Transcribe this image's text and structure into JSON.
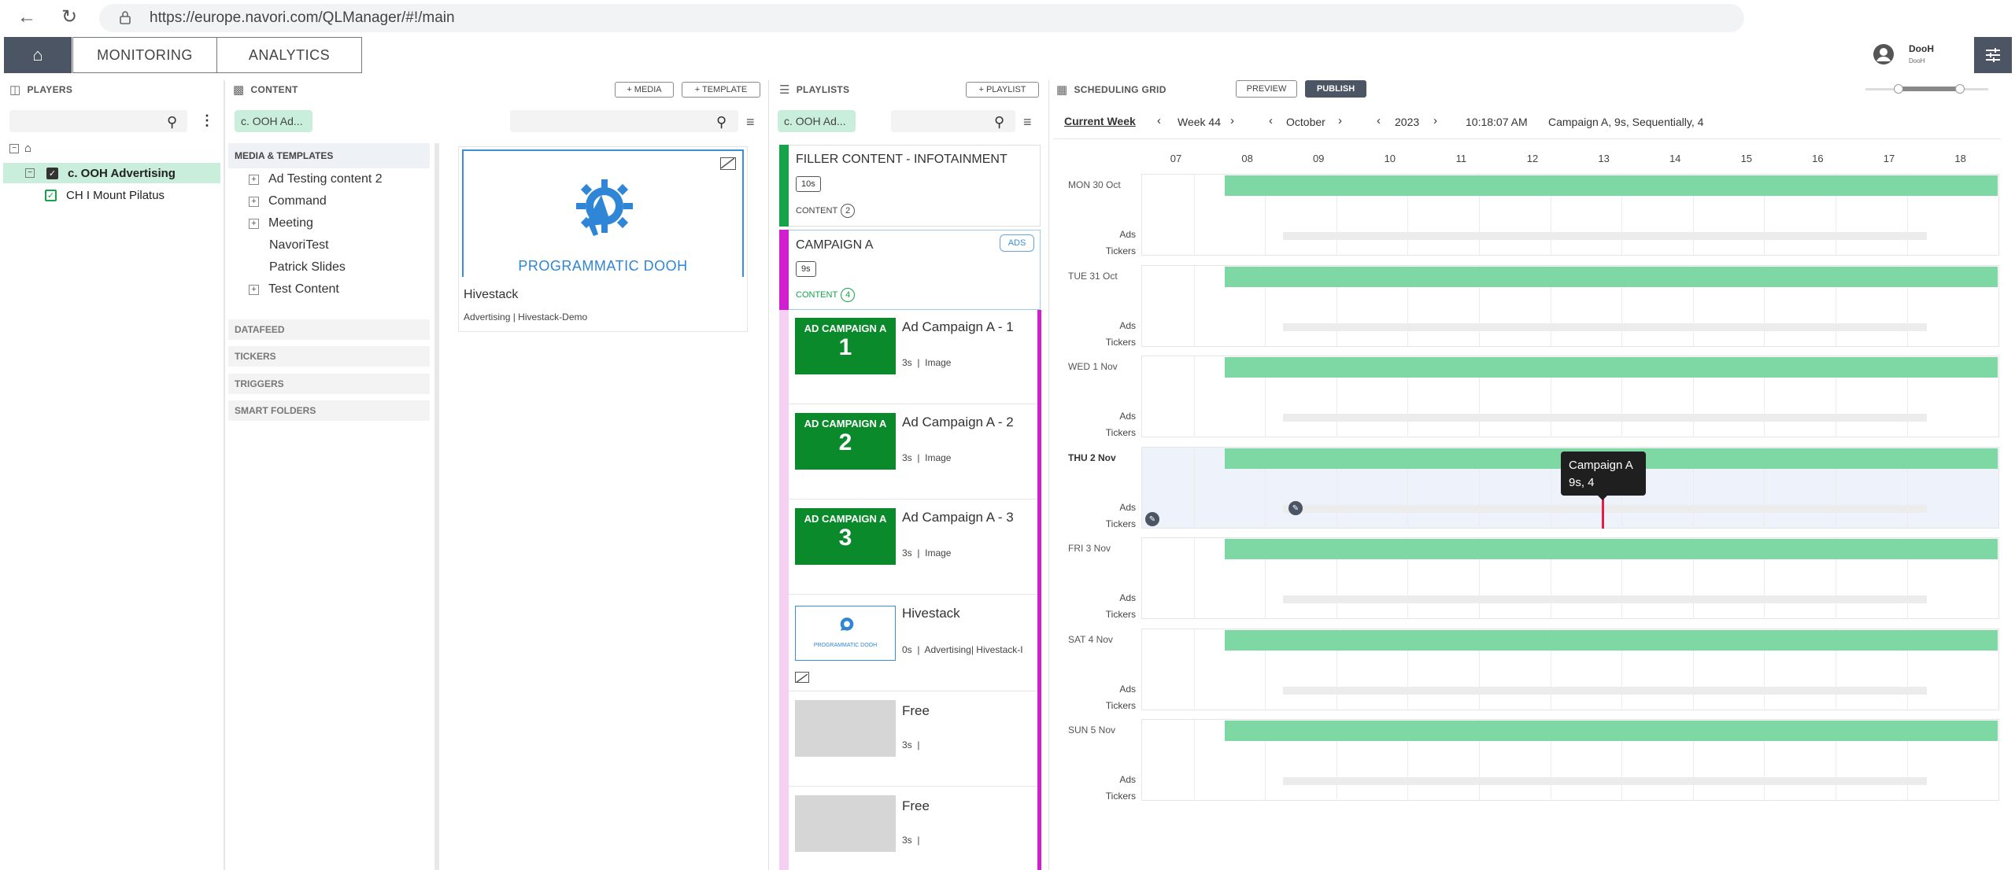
{
  "browser": {
    "url": "https://europe.navori.com/QLManager/#!/main"
  },
  "header": {
    "tabs": [
      "MONITORING",
      "ANALYTICS"
    ],
    "user": {
      "name": "DooH",
      "sub": "DooH"
    }
  },
  "players": {
    "title": "PLAYERS",
    "items": [
      {
        "label": "c. OOH Advertising",
        "selected": true
      },
      {
        "label": "CH I Mount Pilatus",
        "selected": false
      }
    ]
  },
  "content": {
    "title": "CONTENT",
    "media_button": "+ MEDIA",
    "template_button": "+ TEMPLATE",
    "filter_chip": "c. OOH Ad...",
    "section_media": "MEDIA & TEMPLATES",
    "categories": [
      {
        "label": "Ad Testing content 2",
        "expandable": true
      },
      {
        "label": "Command",
        "expandable": true
      },
      {
        "label": "Meeting",
        "expandable": true
      },
      {
        "label": "NavoriTest",
        "expandable": false
      },
      {
        "label": "Patrick Slides",
        "expandable": false
      },
      {
        "label": "Test Content",
        "expandable": true
      }
    ],
    "sections": [
      "DATAFEED",
      "TICKERS",
      "TRIGGERS",
      "SMART FOLDERS"
    ],
    "card": {
      "banner": "PROGRAMMATIC DOOH",
      "title": "Hivestack",
      "meta": "Advertising | Hivestack-Demo"
    }
  },
  "playlists": {
    "title": "PLAYLISTS",
    "add_button": "+ PLAYLIST",
    "filter_chip": "c. OOH Ad...",
    "filler": {
      "title": "FILLER CONTENT - INFOTAINMENT",
      "duration": "10s",
      "content_label": "CONTENT",
      "content_count": "2"
    },
    "campaign": {
      "title": "CAMPAIGN A",
      "badge": "ADS",
      "duration": "9s",
      "content_label": "CONTENT",
      "content_count": "4"
    },
    "items": [
      {
        "thumb_title": "AD CAMPAIGN A",
        "thumb_num": "1",
        "title": "Ad Campaign A - 1",
        "meta": "3s  |  Image"
      },
      {
        "thumb_title": "AD CAMPAIGN A",
        "thumb_num": "2",
        "title": "Ad Campaign A - 2",
        "meta": "3s  |  Image"
      },
      {
        "thumb_title": "AD CAMPAIGN A",
        "thumb_num": "3",
        "title": "Ad Campaign A - 3",
        "meta": "3s  |  Image"
      },
      {
        "thumb_title": "PROGRAMMATIC DOOH",
        "thumb_num": "",
        "title": "Hivestack",
        "meta": "0s  |  Advertising| Hivestack-I"
      },
      {
        "thumb_title": "",
        "thumb_num": "",
        "title": "Free",
        "meta": "3s  |"
      },
      {
        "thumb_title": "",
        "thumb_num": "",
        "title": "Free",
        "meta": "3s  |"
      }
    ]
  },
  "schedule": {
    "title": "SCHEDULING GRID",
    "preview_button": "PREVIEW",
    "publish_button": "PUBLISH",
    "current_week": "Current Week",
    "week": "Week 44",
    "month": "October",
    "year": "2023",
    "time": "10:18:07 AM",
    "summary": "Campaign A, 9s, Sequentially, 4",
    "hours": [
      "07",
      "08",
      "09",
      "10",
      "11",
      "12",
      "13",
      "14",
      "15",
      "16",
      "17",
      "18"
    ],
    "days": [
      "MON 30 Oct",
      "TUE 31 Oct",
      "WED 1 Nov",
      "THU 2 Nov",
      "FRI 3 Nov",
      "SAT 4 Nov",
      "SUN 5 Nov"
    ],
    "row_labels": {
      "ads": "Ads",
      "tickers": "Tickers"
    },
    "tooltip": {
      "line1": "Campaign A",
      "line2": "9s, 4"
    }
  }
}
